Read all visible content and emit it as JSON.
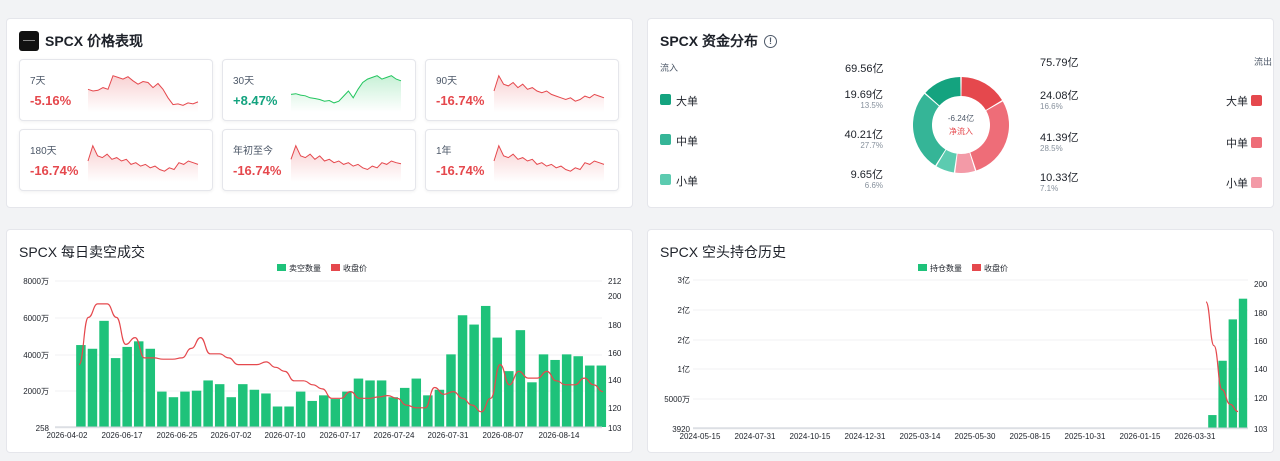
{
  "price_panel": {
    "title": "SPCX 价格表现",
    "cards": [
      {
        "label": "7天",
        "change": "-5.16%",
        "dir": "neg",
        "spark": [
          0.55,
          0.5,
          0.52,
          0.6,
          0.55,
          0.95,
          0.9,
          0.85,
          0.92,
          0.8,
          0.7,
          0.78,
          0.75,
          0.6,
          0.72,
          0.55,
          0.3,
          0.1,
          0.12,
          0.08,
          0.15,
          0.12,
          0.18
        ]
      },
      {
        "label": "30天",
        "change": "+8.47%",
        "dir": "pos",
        "spark": [
          0.4,
          0.42,
          0.38,
          0.36,
          0.3,
          0.28,
          0.25,
          0.2,
          0.22,
          0.15,
          0.2,
          0.35,
          0.5,
          0.3,
          0.55,
          0.75,
          0.85,
          0.9,
          0.95,
          0.85,
          0.9,
          0.95,
          0.85,
          0.8
        ]
      },
      {
        "label": "90天",
        "change": "-16.74%",
        "dir": "neg",
        "spark": [
          0.5,
          0.95,
          0.7,
          0.65,
          0.75,
          0.6,
          0.7,
          0.55,
          0.6,
          0.5,
          0.45,
          0.5,
          0.4,
          0.35,
          0.3,
          0.25,
          0.3,
          0.2,
          0.25,
          0.35,
          0.3,
          0.4,
          0.35,
          0.3
        ]
      },
      {
        "label": "180天",
        "change": "-16.74%",
        "dir": "neg",
        "spark": [
          0.5,
          0.95,
          0.65,
          0.6,
          0.7,
          0.55,
          0.6,
          0.5,
          0.55,
          0.4,
          0.45,
          0.35,
          0.4,
          0.3,
          0.35,
          0.25,
          0.2,
          0.3,
          0.25,
          0.45,
          0.4,
          0.5,
          0.45,
          0.4
        ]
      },
      {
        "label": "年初至今",
        "change": "-16.74%",
        "dir": "neg",
        "spark": [
          0.55,
          0.95,
          0.65,
          0.6,
          0.7,
          0.55,
          0.65,
          0.5,
          0.55,
          0.45,
          0.5,
          0.4,
          0.45,
          0.35,
          0.4,
          0.3,
          0.25,
          0.35,
          0.3,
          0.45,
          0.4,
          0.5,
          0.45,
          0.42
        ]
      },
      {
        "label": "1年",
        "change": "-16.74%",
        "dir": "neg",
        "spark": [
          0.5,
          0.95,
          0.65,
          0.6,
          0.7,
          0.55,
          0.6,
          0.5,
          0.55,
          0.4,
          0.45,
          0.35,
          0.4,
          0.3,
          0.35,
          0.25,
          0.2,
          0.3,
          0.25,
          0.45,
          0.4,
          0.5,
          0.45,
          0.4
        ]
      }
    ]
  },
  "fund_panel": {
    "title": "SPCX 资金分布",
    "inflow_label": "流入",
    "outflow_label": "流出",
    "inflow_total": "69.56亿",
    "outflow_total": "75.79亿",
    "center_value": "-6.24亿",
    "center_label": "净流入",
    "inflow": [
      {
        "name": "大单",
        "amount": "19.69亿",
        "pct": "13.5%",
        "color": "#14a37f",
        "value": 19.69
      },
      {
        "name": "中单",
        "amount": "40.21亿",
        "pct": "27.7%",
        "color": "#35b597",
        "value": 40.21
      },
      {
        "name": "小单",
        "amount": "9.65亿",
        "pct": "6.6%",
        "color": "#5ccbb0",
        "value": 9.65
      }
    ],
    "outflow": [
      {
        "name": "大单",
        "amount": "24.08亿",
        "pct": "16.6%",
        "color": "#e5484d",
        "value": 24.08
      },
      {
        "name": "中单",
        "amount": "41.39亿",
        "pct": "28.5%",
        "color": "#ee6d78",
        "value": 41.39
      },
      {
        "name": "小单",
        "amount": "10.33亿",
        "pct": "7.1%",
        "color": "#f39aa7",
        "value": 10.33
      }
    ]
  },
  "short_panel": {
    "title": "SPCX 每日卖空成交",
    "legend_bar": "卖空数量",
    "legend_line": "收盘价",
    "bar_color": "#1ec27a",
    "line_color": "#e5484d"
  },
  "hold_panel": {
    "title": "SPCX 空头持仓历史",
    "legend_bar": "持仓数量",
    "legend_line": "收盘价",
    "bar_color": "#1ec27a",
    "line_color": "#e5484d"
  },
  "chart_data": [
    {
      "type": "bar",
      "title": "SPCX 每日卖空成交",
      "x_tick_labels": [
        "2026-04-02",
        "2026-06-17",
        "2026-06-25",
        "2026-07-02",
        "2026-07-10",
        "2026-07-17",
        "2026-07-24",
        "2026-07-31",
        "2026-08-07",
        "2026-08-14"
      ],
      "left_axis_labels": [
        "8000万",
        "6000万",
        "4000万",
        "2000万",
        "258"
      ],
      "right_axis_labels": [
        "212",
        "200",
        "180",
        "160",
        "140",
        "120",
        "103"
      ],
      "ylim_left": [
        258,
        80000000
      ],
      "ylim_right": [
        103,
        212
      ],
      "series": [
        {
          "name": "卖空数量",
          "kind": "bar",
          "values": [
            44000000,
            42000000,
            57000000,
            37000000,
            43000000,
            46000000,
            42000000,
            19000000,
            16000000,
            19000000,
            19500000,
            25000000,
            23000000,
            16000000,
            23000000,
            20000000,
            18000000,
            11000000,
            11000000,
            19000000,
            14000000,
            17000000,
            15000000,
            19000000,
            26000000,
            25000000,
            25000000,
            16000000,
            21000000,
            26000000,
            17000000,
            20000000,
            39000000,
            60000000,
            55000000,
            65000000,
            48000000,
            30000000,
            52000000,
            24000000,
            39000000,
            36000000,
            39000000,
            38000000,
            33000000,
            33000000
          ]
        },
        {
          "name": "收盘价",
          "kind": "line",
          "values": [
            150,
            185,
            195,
            195,
            185,
            165,
            170,
            155,
            155,
            154,
            154,
            155,
            162,
            170,
            158,
            158,
            155,
            150,
            150,
            150,
            152,
            148,
            145,
            138,
            138,
            135,
            132,
            125,
            125,
            130,
            125,
            125,
            126,
            127,
            125,
            120,
            118,
            118,
            133,
            128,
            130,
            125,
            120,
            115,
            125,
            150,
            135,
            145,
            140,
            140,
            145,
            138,
            135,
            135,
            140,
            135,
            130
          ]
        }
      ]
    },
    {
      "type": "bar",
      "title": "SPCX 空头持仓历史",
      "x_tick_labels": [
        "2024-05-15",
        "2024-07-31",
        "2024-10-15",
        "2024-12-31",
        "2025-03-14",
        "2025-05-30",
        "2025-08-15",
        "2025-10-31",
        "2026-01-15",
        "2026-03-31"
      ],
      "left_axis_labels": [
        "3亿",
        "2亿",
        "2亿",
        "1亿",
        "5000万",
        "3920"
      ],
      "right_axis_labels": [
        "200",
        "180",
        "160",
        "140",
        "120",
        "103"
      ],
      "series": [
        {
          "name": "持仓数量",
          "kind": "bar",
          "values": [
            0,
            0,
            0,
            0,
            0,
            0,
            0,
            0,
            0,
            0,
            0,
            0,
            0,
            0,
            0,
            0,
            0,
            0,
            0,
            0,
            0,
            0,
            0,
            0,
            0,
            0,
            0,
            0,
            0,
            0,
            0,
            0,
            0,
            0,
            0,
            0,
            0,
            0,
            0,
            0,
            0,
            0,
            0,
            0,
            0,
            25000000,
            130000000,
            210000000,
            250000000
          ]
        },
        {
          "name": "收盘价",
          "kind": "line",
          "values": [
            190,
            160,
            130,
            120,
            115
          ]
        }
      ]
    }
  ]
}
